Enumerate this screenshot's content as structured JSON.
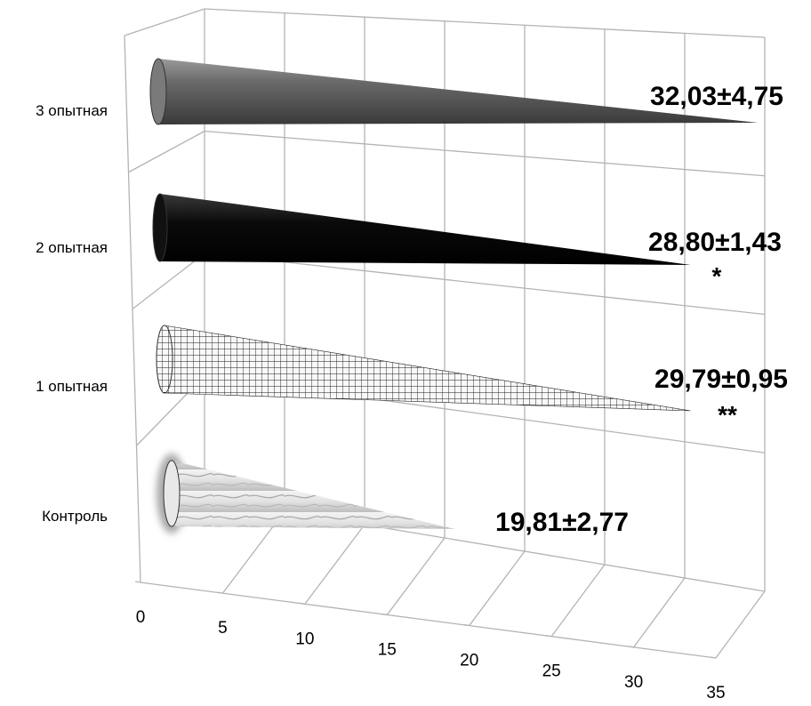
{
  "chart_data": {
    "type": "bar",
    "orientation": "horizontal",
    "style": "3d-cone",
    "categories": [
      "Контроль",
      "1 опытная",
      "2 опытная",
      "3 опытная"
    ],
    "values": [
      19.81,
      29.79,
      28.8,
      32.03
    ],
    "data_labels": [
      "19,81±2,77",
      "29,79±0,95",
      "28,80±1,43",
      "32,03±4,75"
    ],
    "significance": [
      "",
      "**",
      "*",
      ""
    ],
    "fills": [
      "marble-white",
      "grid-pattern",
      "#000000",
      "#6e6e6e"
    ],
    "xlim": [
      0,
      35
    ],
    "xticks": [
      "0",
      "5",
      "10",
      "15",
      "20",
      "25",
      "30",
      "35"
    ],
    "grid": true,
    "title": "",
    "xlabel": "",
    "ylabel": ""
  }
}
